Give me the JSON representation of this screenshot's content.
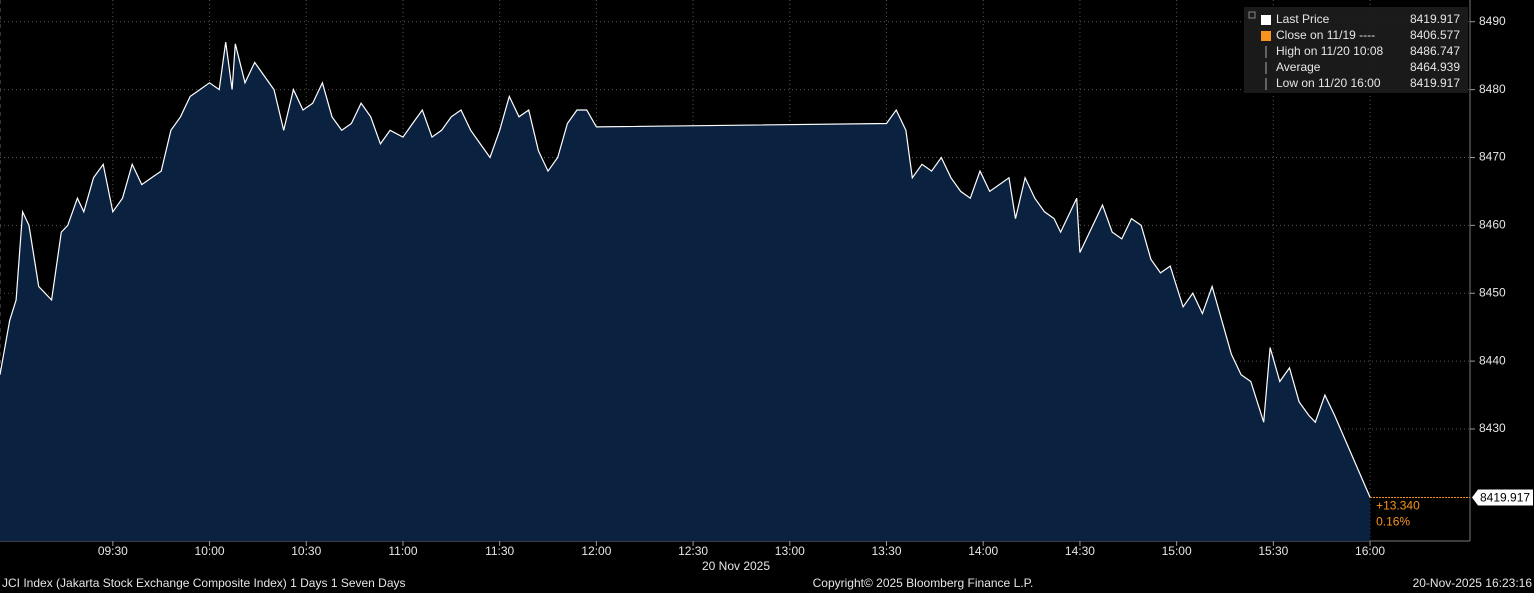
{
  "chart_data": {
    "type": "area",
    "date_label": "20 Nov 2025",
    "footer_left": "JCI Index (Jakarta Stock Exchange Composite Index) 1 Days 1 Seven Days",
    "footer_center": "Copyright© 2025 Bloomberg Finance L.P.",
    "footer_right": "20-Nov-2025 16:23:16",
    "change_label": "+13.340",
    "change_pct_label": "0.16%",
    "xlim": [
      "08:55",
      "16:31"
    ],
    "xticks": [
      "09:30",
      "10:00",
      "10:30",
      "11:00",
      "11:30",
      "12:00",
      "12:30",
      "13:00",
      "13:30",
      "14:00",
      "14:30",
      "15:00",
      "15:30",
      "16:00"
    ],
    "ylim": [
      8413.5,
      8493.2
    ],
    "yticks": [
      8430,
      8440,
      8450,
      8460,
      8470,
      8480,
      8490
    ],
    "grid": true,
    "fill_color": "#0b2140",
    "accent_color": "#f7931e",
    "x": [
      "08:55",
      "08:58",
      "09:00",
      "09:02",
      "09:04",
      "09:07",
      "09:09",
      "09:11",
      "09:14",
      "09:16",
      "09:19",
      "09:21",
      "09:24",
      "09:27",
      "09:30",
      "09:33",
      "09:36",
      "09:39",
      "09:42",
      "09:45",
      "09:48",
      "09:51",
      "09:54",
      "09:57",
      "10:00",
      "10:03",
      "10:05",
      "10:07",
      "10:08",
      "10:11",
      "10:14",
      "10:17",
      "10:20",
      "10:23",
      "10:26",
      "10:29",
      "10:32",
      "10:35",
      "10:38",
      "10:41",
      "10:44",
      "10:47",
      "10:50",
      "10:53",
      "10:56",
      "11:00",
      "11:03",
      "11:06",
      "11:09",
      "11:12",
      "11:15",
      "11:18",
      "11:21",
      "11:24",
      "11:27",
      "11:30",
      "11:33",
      "11:36",
      "11:39",
      "11:42",
      "11:45",
      "11:48",
      "11:51",
      "11:54",
      "11:57",
      "12:00",
      "13:30",
      "13:33",
      "13:36",
      "13:38",
      "13:41",
      "13:44",
      "13:47",
      "13:50",
      "13:53",
      "13:56",
      "13:59",
      "14:02",
      "14:05",
      "14:08",
      "14:10",
      "14:13",
      "14:16",
      "14:19",
      "14:22",
      "14:24",
      "14:27",
      "14:29",
      "14:30",
      "14:33",
      "14:37",
      "14:40",
      "14:43",
      "14:46",
      "14:49",
      "14:52",
      "14:55",
      "14:58",
      "15:00",
      "15:02",
      "15:05",
      "15:08",
      "15:11",
      "15:14",
      "15:17",
      "15:20",
      "15:23",
      "15:27",
      "15:29",
      "15:32",
      "15:35",
      "15:38",
      "15:41",
      "15:43",
      "15:46",
      "15:49",
      "16:00"
    ],
    "series": [
      {
        "name": "Last Price",
        "color": "#ffffff",
        "values": [
          8438,
          8446,
          8449,
          8462,
          8460,
          8451,
          8450,
          8449,
          8459,
          8460,
          8464,
          8462,
          8467,
          8469,
          8462,
          8464,
          8469,
          8466,
          8467,
          8468,
          8474,
          8476,
          8479,
          8480,
          8481,
          8480,
          8487,
          8480,
          8486.747,
          8481,
          8484,
          8482,
          8480,
          8474,
          8480,
          8477,
          8478,
          8481,
          8476,
          8474,
          8475,
          8478,
          8476,
          8472,
          8474,
          8473,
          8475,
          8477,
          8473,
          8474,
          8476,
          8477,
          8474,
          8472,
          8470,
          8474,
          8479,
          8476,
          8477,
          8471,
          8468,
          8470,
          8475,
          8477,
          8477,
          8474.5,
          8475,
          8477,
          8474,
          8467,
          8469,
          8468,
          8470,
          8467,
          8465,
          8464,
          8468,
          8465,
          8466,
          8467,
          8461,
          8467,
          8464,
          8462,
          8461,
          8459,
          8462,
          8464,
          8456,
          8459,
          8463,
          8459,
          8458,
          8461,
          8460,
          8455,
          8453,
          8454,
          8451,
          8448,
          8450,
          8447,
          8451,
          8446,
          8441,
          8438,
          8437,
          8431,
          8442,
          8437,
          8439,
          8434,
          8432,
          8431,
          8435,
          8432,
          8419.917
        ]
      }
    ],
    "legend_items": [
      {
        "label": "Last Price",
        "value": 8419.917
      },
      {
        "label": "Close on 11/19 ----",
        "value": 8406.577
      },
      {
        "label": "High on 11/20 10:08",
        "value": 8486.747
      },
      {
        "label": "Average",
        "value": 8464.939
      },
      {
        "label": "Low on 11/20 16:00",
        "value": 8419.917
      }
    ]
  }
}
